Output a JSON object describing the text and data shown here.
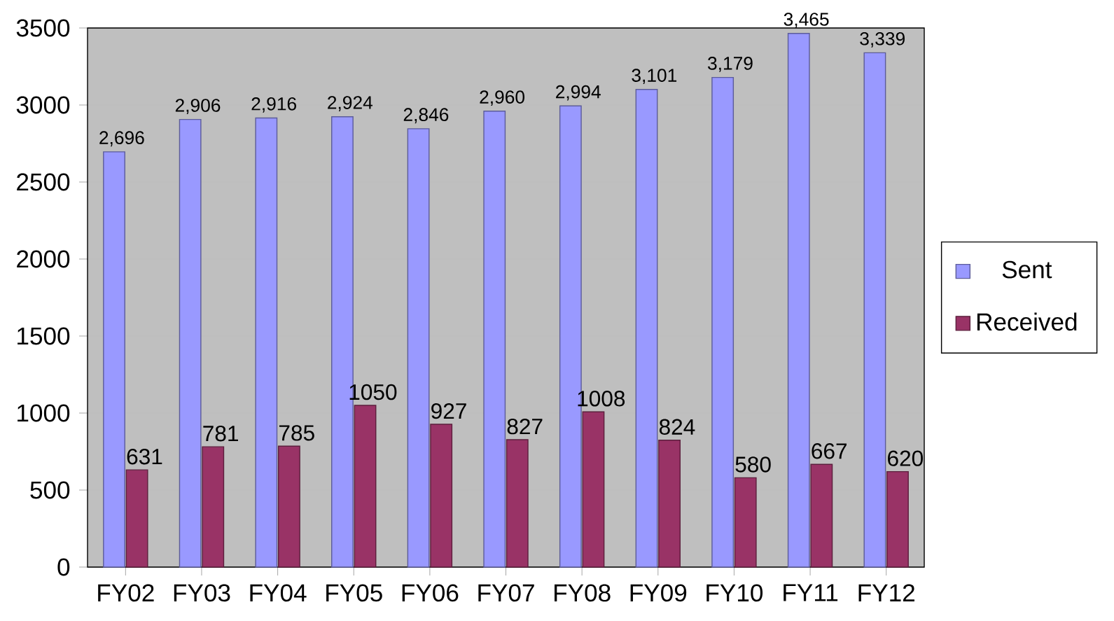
{
  "chart_data": {
    "type": "bar",
    "categories": [
      "FY02",
      "FY03",
      "FY04",
      "FY05",
      "FY06",
      "FY07",
      "FY08",
      "FY09",
      "FY10",
      "FY11",
      "FY12"
    ],
    "series": [
      {
        "name": "Sent",
        "color": "#9999ff",
        "values": [
          2696,
          2906,
          2916,
          2924,
          2846,
          2960,
          2994,
          3101,
          3179,
          3465,
          3339
        ],
        "value_labels": [
          "2,696",
          "2,906",
          "2,916",
          "2,924",
          "2,846",
          "2,960",
          "2,994",
          "3,101",
          "3,179",
          "3,465",
          "3,339"
        ]
      },
      {
        "name": "Received",
        "color": "#993366",
        "values": [
          631,
          781,
          785,
          1050,
          927,
          827,
          1008,
          824,
          580,
          667,
          620
        ],
        "value_labels": [
          "631",
          "781",
          "785",
          "1050",
          "927",
          "827",
          "1008",
          "824",
          "580",
          "667",
          "620"
        ]
      }
    ],
    "ylim": [
      0,
      3500
    ],
    "yticks": [
      0,
      500,
      1000,
      1500,
      2000,
      2500,
      3000,
      3500
    ],
    "grid": "y",
    "legend": "right"
  }
}
